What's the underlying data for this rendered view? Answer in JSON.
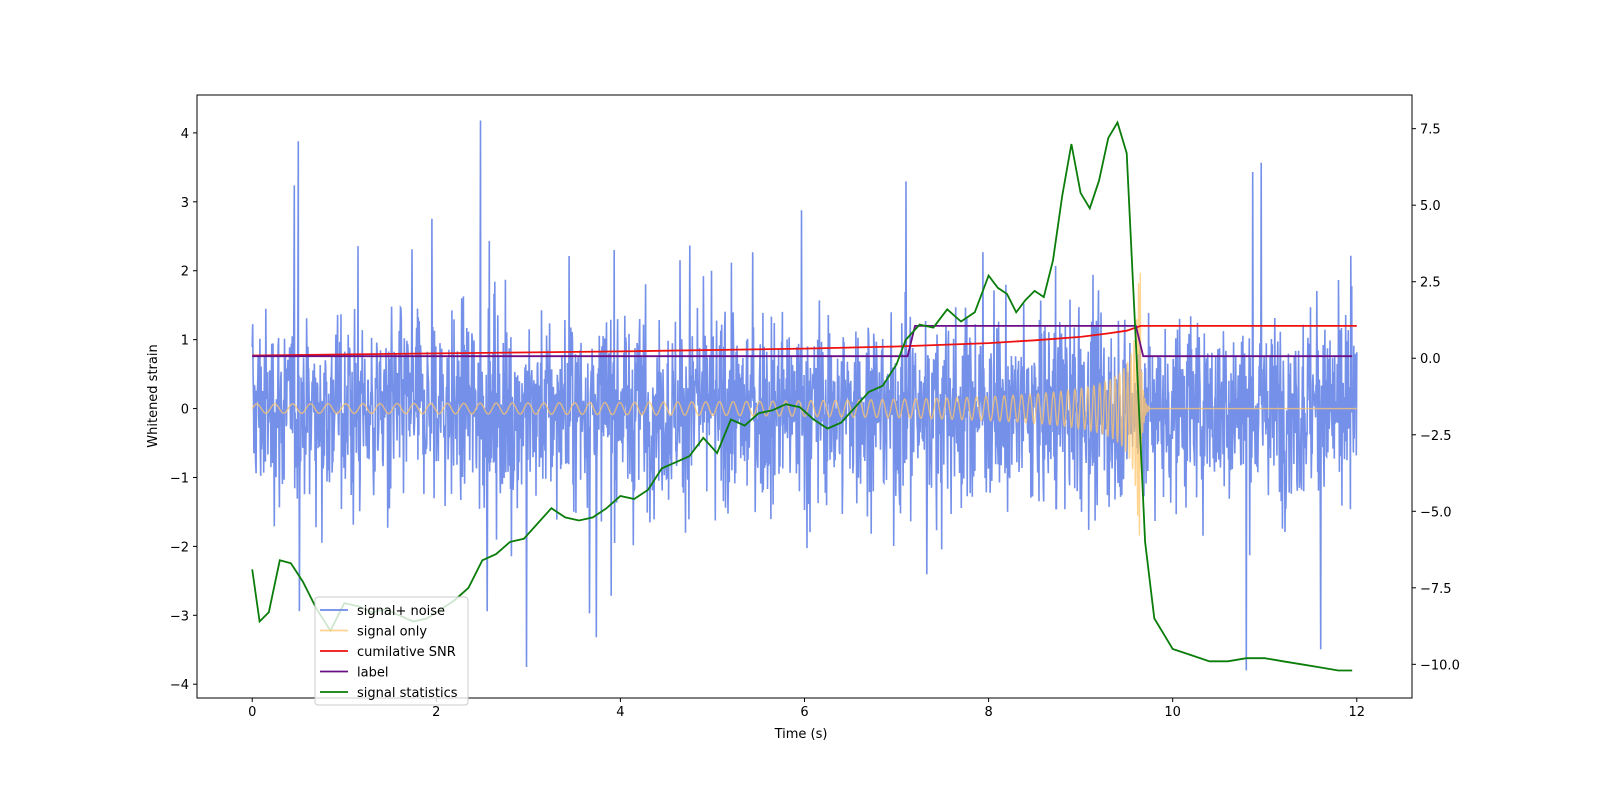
{
  "chart_data": {
    "type": "line",
    "xlabel": "Time (s)",
    "ylabel_left": "Whitened strain",
    "ylabel_right": "",
    "xlim": [
      -0.6,
      12.6
    ],
    "ylim_left": [
      -4.2,
      4.55
    ],
    "ylim_right": [
      -11.1,
      8.6
    ],
    "x_ticks": [
      0,
      2,
      4,
      6,
      8,
      10,
      12
    ],
    "x_tick_labels": [
      "0",
      "2",
      "4",
      "6",
      "8",
      "10",
      "12"
    ],
    "y_left_ticks": [
      -4,
      -3,
      -2,
      -1,
      0,
      1,
      2,
      3,
      4
    ],
    "y_left_tick_labels": [
      "−4",
      "−3",
      "−2",
      "−1",
      "0",
      "1",
      "2",
      "3",
      "4"
    ],
    "y_right_ticks": [
      -10,
      -7.5,
      -5,
      -2.5,
      0,
      2.5,
      5,
      7.5
    ],
    "y_right_tick_labels": [
      "−10.0",
      "−7.5",
      "−5.0",
      "−2.5",
      "0.0",
      "2.5",
      "5.0",
      "7.5"
    ],
    "grid": false,
    "legend_position": "lower-left",
    "series": [
      {
        "name": "signal+ noise",
        "color": "#6d8ae8",
        "axis": "left",
        "kind": "noise_band",
        "description_values": {
          "x_start": 0,
          "x_end": 12,
          "typical_amplitude": 2.3,
          "max_peak": 4.18,
          "min_peak": -3.8
        }
      },
      {
        "name": "signal only",
        "color": "#ffc56b",
        "axis": "left",
        "kind": "chirp",
        "description_values": {
          "x_start": 0,
          "x_merger": 9.65,
          "x_end": 12,
          "amp_start": 0.05,
          "amp_merger": 2.0
        }
      },
      {
        "name": "cumilative SNR",
        "color": "#ee1111",
        "axis": "left",
        "x": [
          0,
          2,
          4,
          6,
          7,
          8,
          8.5,
          9,
          9.3,
          9.5,
          9.65,
          12
        ],
        "y": [
          0.77,
          0.8,
          0.83,
          0.87,
          0.9,
          0.95,
          0.99,
          1.04,
          1.09,
          1.13,
          1.2,
          1.2
        ]
      },
      {
        "name": "label",
        "color": "#6b0f86",
        "axis": "left",
        "x": [
          0,
          7.12,
          7.2,
          9.6,
          9.68,
          11.95
        ],
        "y": [
          0.76,
          0.76,
          1.2,
          1.2,
          0.76,
          0.76
        ]
      },
      {
        "name": "signal statistics",
        "color": "#0a7d0a",
        "axis": "right",
        "x": [
          0,
          0.08,
          0.18,
          0.3,
          0.42,
          0.55,
          0.7,
          0.85,
          1.0,
          1.15,
          1.3,
          1.45,
          1.6,
          1.75,
          1.9,
          2.05,
          2.2,
          2.35,
          2.5,
          2.65,
          2.8,
          2.95,
          3.1,
          3.25,
          3.4,
          3.55,
          3.7,
          3.85,
          4.0,
          4.15,
          4.3,
          4.45,
          4.6,
          4.75,
          4.9,
          5.05,
          5.2,
          5.35,
          5.5,
          5.65,
          5.8,
          5.95,
          6.1,
          6.25,
          6.4,
          6.55,
          6.7,
          6.85,
          7.0,
          7.1,
          7.25,
          7.4,
          7.55,
          7.7,
          7.85,
          8.0,
          8.1,
          8.2,
          8.3,
          8.4,
          8.5,
          8.6,
          8.7,
          8.8,
          8.9,
          9.0,
          9.1,
          9.2,
          9.3,
          9.4,
          9.5,
          9.6,
          9.7,
          9.8,
          10.0,
          10.2,
          10.4,
          10.6,
          10.8,
          11.0,
          11.2,
          11.4,
          11.6,
          11.8,
          11.95
        ],
        "y": [
          -6.9,
          -8.6,
          -8.3,
          -6.6,
          -6.7,
          -7.3,
          -8.2,
          -8.9,
          -8.0,
          -8.1,
          -8.3,
          -8.2,
          -8.4,
          -8.6,
          -8.5,
          -8.2,
          -7.9,
          -7.5,
          -6.6,
          -6.4,
          -6.0,
          -5.9,
          -5.4,
          -4.9,
          -5.2,
          -5.3,
          -5.2,
          -4.9,
          -4.5,
          -4.6,
          -4.3,
          -3.6,
          -3.4,
          -3.2,
          -2.6,
          -3.1,
          -2.0,
          -2.2,
          -1.8,
          -1.7,
          -1.5,
          -1.6,
          -2.0,
          -2.3,
          -2.1,
          -1.6,
          -1.1,
          -0.9,
          -0.2,
          0.6,
          1.1,
          1.0,
          1.6,
          1.2,
          1.5,
          2.7,
          2.3,
          2.1,
          1.5,
          1.9,
          2.2,
          2.0,
          3.2,
          5.3,
          7.0,
          5.4,
          4.9,
          5.8,
          7.2,
          7.7,
          6.7,
          0.5,
          -6.0,
          -8.5,
          -9.5,
          -9.7,
          -9.9,
          -9.9,
          -9.8,
          -9.8,
          -9.9,
          -10.0,
          -10.1,
          -10.2,
          -10.2
        ]
      }
    ]
  }
}
